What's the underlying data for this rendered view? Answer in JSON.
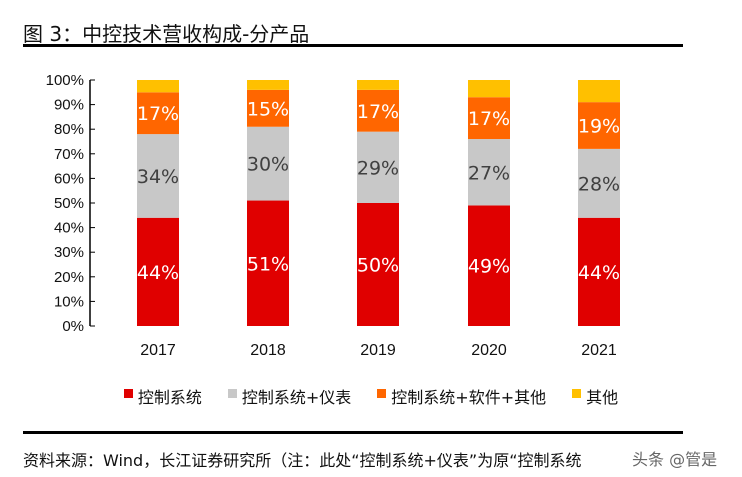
{
  "title": "图 3：中控技术营收构成-分产品",
  "source": "资料来源：Wind，长江证券研究所（注：此处“控制系统+仪表”为原“控制系统",
  "watermark": "头条 @管是",
  "chart_data": {
    "type": "bar",
    "stacked": true,
    "categories": [
      "2017",
      "2018",
      "2019",
      "2020",
      "2021"
    ],
    "ylim": [
      0,
      100
    ],
    "yticks": [
      "0%",
      "10%",
      "20%",
      "30%",
      "40%",
      "50%",
      "60%",
      "70%",
      "80%",
      "90%",
      "100%"
    ],
    "legend_position": "bottom",
    "grid": false,
    "series": [
      {
        "name": "控制系统",
        "color": "#E00000",
        "values": [
          44,
          51,
          50,
          49,
          44
        ],
        "labels": [
          "44%",
          "51%",
          "50%",
          "49%",
          "44%"
        ],
        "label_color": "#ffffff"
      },
      {
        "name": "控制系统+仪表",
        "color": "#C8C8C8",
        "values": [
          34,
          30,
          29,
          27,
          28
        ],
        "labels": [
          "34%",
          "30%",
          "29%",
          "27%",
          "28%"
        ],
        "label_color": "#404040"
      },
      {
        "name": "控制系统+软件+其他",
        "color": "#FF6600",
        "values": [
          17,
          15,
          17,
          17,
          19
        ],
        "labels": [
          "17%",
          "15%",
          "17%",
          "17%",
          "19%"
        ],
        "label_color": "#ffffff"
      },
      {
        "name": "其他",
        "color": "#FFC000",
        "values": [
          5,
          4,
          4,
          7,
          9
        ],
        "labels": []
      }
    ]
  }
}
